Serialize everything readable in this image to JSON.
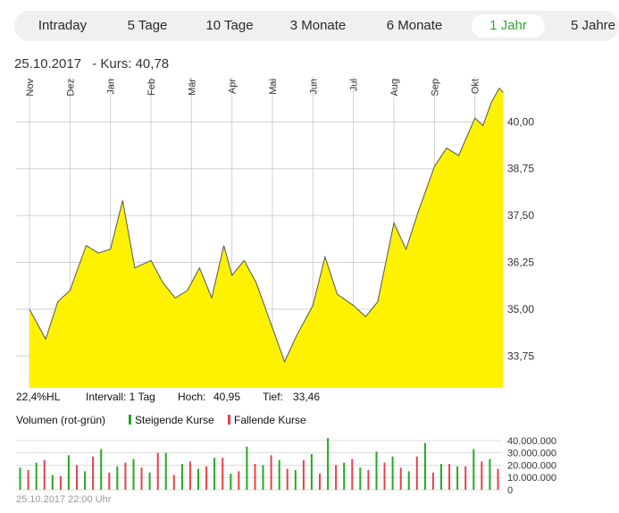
{
  "tabs": [
    {
      "label": "Intraday",
      "active": false
    },
    {
      "label": "5 Tage",
      "active": false
    },
    {
      "label": "10 Tage",
      "active": false
    },
    {
      "label": "3 Monate",
      "active": false
    },
    {
      "label": "6 Monate",
      "active": false
    },
    {
      "label": "1 Jahr",
      "active": true
    },
    {
      "label": "5 Jahre",
      "active": false
    }
  ],
  "quote": {
    "date": "25.10.2017",
    "label": "- Kurs: 40,78"
  },
  "stats": {
    "hl": "22,4%HL",
    "interval": "Intervall: 1 Tag",
    "high_label": "Hoch:",
    "high_value": "40,95",
    "low_label": "Tief:",
    "low_value": "33,46"
  },
  "volume": {
    "title": "Volumen (rot-grün)",
    "rising_label": "Steigende Kurse",
    "falling_label": "Fallende Kurse",
    "rising_color": "#22aa22",
    "falling_color": "#e8404a"
  },
  "footer": {
    "timestamp": "25.10.2017 22:00 Uhr"
  },
  "colors": {
    "area_fill": "#fff200",
    "line": "#555555",
    "grid": "#d0d0d0",
    "active_tab": "#2fa52f"
  },
  "chart_data": [
    {
      "type": "area",
      "title": "",
      "x_tick_labels": [
        "Nov",
        "Dez",
        "Jan",
        "Feb",
        "Mär",
        "Apr",
        "Mai",
        "Jun",
        "Jul",
        "Aug",
        "Sep",
        "Okt"
      ],
      "y_ticks": [
        33.75,
        35.0,
        36.25,
        37.5,
        38.75,
        40.0
      ],
      "y_tick_labels": [
        "33,75",
        "35,00",
        "36,25",
        "37,50",
        "38,75",
        "40,00"
      ],
      "ylim": [
        32.9,
        41.2
      ],
      "grid": true,
      "x": [
        0,
        0.4,
        0.7,
        1,
        1.4,
        1.7,
        2,
        2.3,
        2.6,
        3,
        3.3,
        3.6,
        3.9,
        4.2,
        4.5,
        4.8,
        5,
        5.3,
        5.6,
        6,
        6.3,
        6.6,
        7,
        7.3,
        7.6,
        8,
        8.3,
        8.6,
        9,
        9.3,
        9.6,
        10,
        10.3,
        10.6,
        11,
        11.2,
        11.4,
        11.6,
        11.7
      ],
      "values": [
        35.0,
        34.2,
        35.2,
        35.5,
        36.7,
        36.5,
        36.6,
        37.9,
        36.1,
        36.3,
        35.7,
        35.3,
        35.5,
        36.1,
        35.3,
        36.7,
        35.9,
        36.3,
        35.7,
        34.5,
        33.6,
        34.3,
        35.1,
        36.4,
        35.4,
        35.1,
        34.8,
        35.2,
        37.3,
        36.6,
        37.6,
        38.8,
        39.3,
        39.1,
        40.1,
        39.9,
        40.5,
        40.9,
        40.78
      ],
      "series": [
        {
          "values": [
            35.0,
            34.2,
            35.2,
            35.5,
            36.7,
            36.5,
            36.6,
            37.9,
            36.1,
            36.3,
            35.7,
            35.3,
            35.5,
            36.1,
            35.3,
            36.7,
            35.9,
            36.3,
            35.7,
            34.5,
            33.6,
            34.3,
            35.1,
            36.4,
            35.4,
            35.1,
            34.8,
            35.2,
            37.3,
            36.6,
            37.6,
            38.8,
            39.3,
            39.1,
            40.1,
            39.9,
            40.5,
            40.9,
            40.78
          ]
        }
      ]
    },
    {
      "type": "bar",
      "title": "",
      "y_ticks": [
        0,
        10000000,
        20000000,
        30000000,
        40000000
      ],
      "y_tick_labels": [
        "0",
        "10.000.000",
        "20.000.000",
        "30.000.000",
        "40.000.000"
      ],
      "ylim": [
        0,
        45000000
      ],
      "grid": true,
      "series": [
        {
          "name": "Steigende Kurse",
          "values": [
            18000000,
            22000000,
            12000000,
            28000000,
            15000000,
            33000000,
            19000000,
            25000000,
            14000000,
            30000000,
            21000000,
            17000000,
            26000000,
            13000000,
            35000000,
            20000000,
            24000000,
            16000000,
            29000000,
            42000000,
            22000000,
            18000000,
            31000000,
            27000000,
            15000000,
            38000000,
            21000000,
            19000000,
            33000000,
            25000000
          ]
        },
        {
          "name": "Fallende Kurse",
          "values": [
            16000000,
            24000000,
            11000000,
            20000000,
            27000000,
            14000000,
            22000000,
            18000000,
            30000000,
            12000000,
            23000000,
            19000000,
            26000000,
            15000000,
            21000000,
            28000000,
            17000000,
            24000000,
            13000000,
            20000000,
            25000000,
            16000000,
            22000000,
            18000000,
            27000000,
            14000000,
            21000000,
            19000000,
            23000000,
            17000000
          ]
        }
      ]
    }
  ]
}
